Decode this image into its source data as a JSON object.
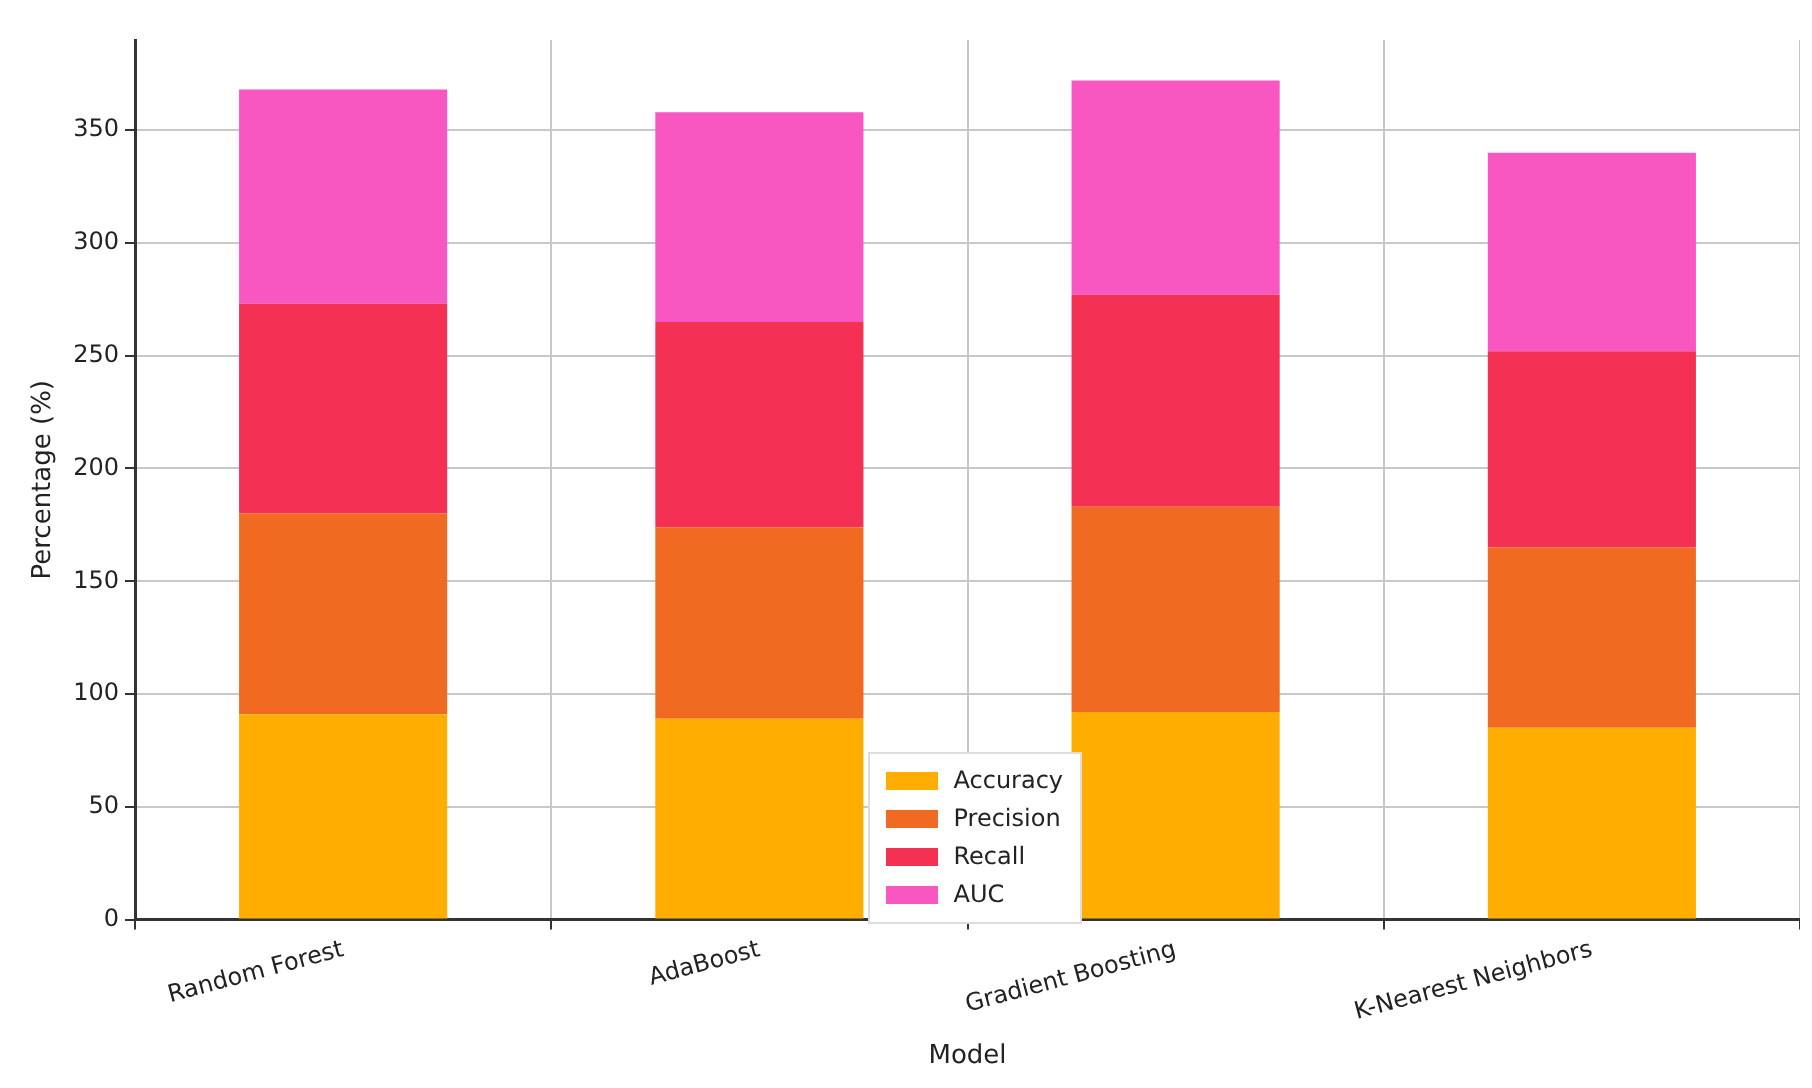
{
  "chart_data": {
    "type": "bar",
    "stacked": true,
    "xlabel": "Model",
    "ylabel": "Percentage (%)",
    "categories": [
      "Random Forest",
      "AdaBoost",
      "Gradient Boosting",
      "K-Nearest Neighbors"
    ],
    "series": [
      {
        "name": "Accuracy",
        "color": "#ffae00",
        "values": [
          91,
          89,
          92,
          85
        ]
      },
      {
        "name": "Precision",
        "color": "#f06a22",
        "values": [
          89,
          85,
          91,
          80
        ]
      },
      {
        "name": "Recall",
        "color": "#f43155",
        "values": [
          93,
          91,
          94,
          87
        ]
      },
      {
        "name": "AUC",
        "color": "#f857c1",
        "values": [
          95,
          93,
          95,
          88
        ]
      }
    ],
    "ylim": [
      0,
      390
    ],
    "yticks": [
      0,
      50,
      100,
      150,
      200,
      250,
      300,
      350
    ],
    "grid": true,
    "legend": "bottom"
  }
}
